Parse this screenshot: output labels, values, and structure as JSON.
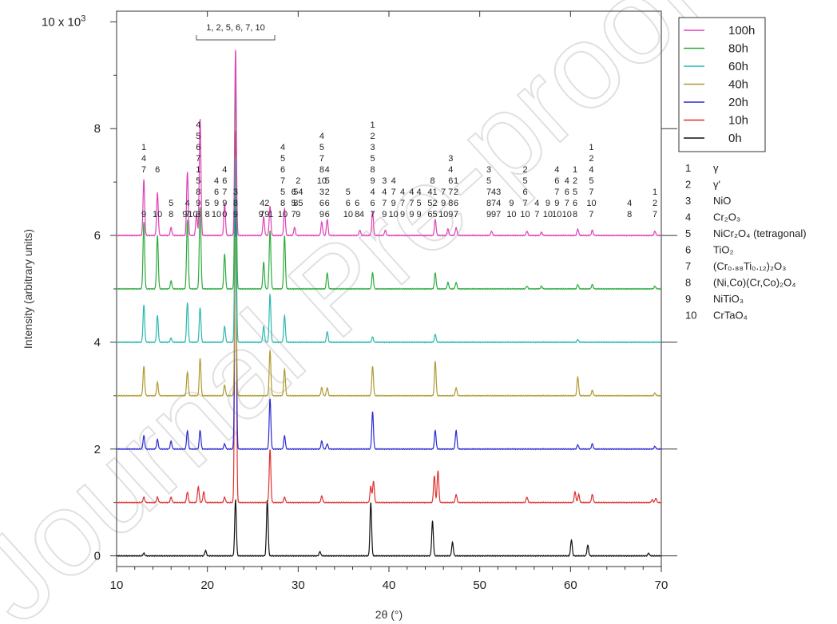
{
  "chart_data": {
    "type": "line",
    "xlabel": "2θ (°)",
    "ylabel": "Intensity (arbitrary units)",
    "xlim": [
      10,
      70
    ],
    "ylim": [
      -0.2,
      10.2
    ],
    "x_ticks": [
      "10",
      "20",
      "30",
      "40",
      "50",
      "60",
      "70"
    ],
    "y_ticks": [
      "0",
      "2",
      "4",
      "6",
      "8"
    ],
    "y_top_label": "10 x 10",
    "y_top_exponent": "3",
    "grid": false,
    "legend_position": "top-right",
    "series": [
      {
        "name": "100h",
        "color": "#e040b8",
        "offset": 6.0,
        "peaks": [
          [
            13.0,
            1.05
          ],
          [
            14.5,
            0.8
          ],
          [
            16.0,
            0.15
          ],
          [
            17.8,
            1.2
          ],
          [
            18.8,
            0.4
          ],
          [
            19.2,
            2.2
          ],
          [
            21.9,
            0.6
          ],
          [
            23.1,
            3.5
          ],
          [
            26.2,
            0.35
          ],
          [
            26.9,
            0.55
          ],
          [
            28.5,
            0.5
          ],
          [
            29.6,
            0.15
          ],
          [
            32.6,
            0.25
          ],
          [
            33.2,
            0.3
          ],
          [
            36.8,
            0.1
          ],
          [
            38.2,
            0.45
          ],
          [
            39.6,
            0.1
          ],
          [
            45.1,
            0.3
          ],
          [
            46.5,
            0.12
          ],
          [
            47.4,
            0.15
          ],
          [
            51.3,
            0.08
          ],
          [
            55.2,
            0.08
          ],
          [
            56.8,
            0.06
          ],
          [
            60.8,
            0.12
          ],
          [
            62.4,
            0.1
          ],
          [
            69.3,
            0.08
          ]
        ]
      },
      {
        "name": "80h",
        "color": "#2eaa3e",
        "offset": 5.0,
        "peaks": [
          [
            13.0,
            1.25
          ],
          [
            14.5,
            1.0
          ],
          [
            16.0,
            0.15
          ],
          [
            17.8,
            1.3
          ],
          [
            19.2,
            1.55
          ],
          [
            21.9,
            0.65
          ],
          [
            23.1,
            4.0
          ],
          [
            26.2,
            0.5
          ],
          [
            26.9,
            1.1
          ],
          [
            28.5,
            1.0
          ],
          [
            33.2,
            0.3
          ],
          [
            38.2,
            0.3
          ],
          [
            45.1,
            0.3
          ],
          [
            46.5,
            0.12
          ],
          [
            47.4,
            0.12
          ],
          [
            55.2,
            0.05
          ],
          [
            56.8,
            0.05
          ],
          [
            60.8,
            0.08
          ],
          [
            62.4,
            0.08
          ],
          [
            69.3,
            0.05
          ]
        ]
      },
      {
        "name": "60h",
        "color": "#2ab8b0",
        "offset": 4.0,
        "peaks": [
          [
            13.0,
            0.7
          ],
          [
            14.5,
            0.5
          ],
          [
            16.0,
            0.08
          ],
          [
            17.8,
            0.75
          ],
          [
            19.2,
            0.65
          ],
          [
            21.9,
            0.3
          ],
          [
            23.1,
            3.5
          ],
          [
            26.2,
            0.3
          ],
          [
            26.9,
            0.9
          ],
          [
            28.5,
            0.5
          ],
          [
            33.2,
            0.2
          ],
          [
            38.2,
            0.1
          ],
          [
            45.1,
            0.15
          ],
          [
            60.8,
            0.05
          ]
        ]
      },
      {
        "name": "40h",
        "color": "#b09a30",
        "offset": 3.0,
        "peaks": [
          [
            13.0,
            0.55
          ],
          [
            14.5,
            0.25
          ],
          [
            17.8,
            0.45
          ],
          [
            19.2,
            0.7
          ],
          [
            21.9,
            0.2
          ],
          [
            23.1,
            3.0
          ],
          [
            26.9,
            0.85
          ],
          [
            28.5,
            0.5
          ],
          [
            32.6,
            0.15
          ],
          [
            33.2,
            0.15
          ],
          [
            38.2,
            0.55
          ],
          [
            45.1,
            0.65
          ],
          [
            47.4,
            0.15
          ],
          [
            60.8,
            0.35
          ],
          [
            62.4,
            0.1
          ],
          [
            69.3,
            0.05
          ]
        ]
      },
      {
        "name": "20h",
        "color": "#2a2ad0",
        "offset": 2.0,
        "peaks": [
          [
            13.0,
            0.25
          ],
          [
            14.5,
            0.18
          ],
          [
            16.0,
            0.15
          ],
          [
            17.8,
            0.35
          ],
          [
            19.2,
            0.35
          ],
          [
            21.9,
            0.1
          ],
          [
            23.1,
            5.0
          ],
          [
            26.9,
            0.95
          ],
          [
            28.5,
            0.25
          ],
          [
            32.6,
            0.15
          ],
          [
            33.2,
            0.1
          ],
          [
            38.2,
            0.7
          ],
          [
            45.1,
            0.35
          ],
          [
            47.4,
            0.35
          ],
          [
            60.8,
            0.08
          ],
          [
            62.4,
            0.1
          ],
          [
            69.3,
            0.05
          ]
        ]
      },
      {
        "name": "10h",
        "color": "#e03030",
        "offset": 1.0,
        "peaks": [
          [
            13.0,
            0.1
          ],
          [
            14.5,
            0.1
          ],
          [
            16.0,
            0.1
          ],
          [
            17.8,
            0.2
          ],
          [
            19.0,
            0.3
          ],
          [
            19.6,
            0.2
          ],
          [
            21.9,
            0.1
          ],
          [
            23.1,
            7.0
          ],
          [
            26.9,
            1.0
          ],
          [
            28.5,
            0.1
          ],
          [
            32.6,
            0.12
          ],
          [
            38.0,
            0.3
          ],
          [
            38.3,
            0.4
          ],
          [
            45.0,
            0.5
          ],
          [
            45.4,
            0.6
          ],
          [
            47.4,
            0.15
          ],
          [
            55.2,
            0.1
          ],
          [
            60.5,
            0.2
          ],
          [
            60.9,
            0.15
          ],
          [
            62.4,
            0.15
          ],
          [
            69.0,
            0.05
          ],
          [
            69.4,
            0.08
          ]
        ]
      },
      {
        "name": "0h",
        "color": "#111111",
        "offset": 0.0,
        "peaks": [
          [
            13.0,
            0.05
          ],
          [
            19.8,
            0.1
          ],
          [
            23.1,
            1.05
          ],
          [
            26.6,
            1.05
          ],
          [
            32.4,
            0.08
          ],
          [
            38.0,
            1.0
          ],
          [
            44.8,
            0.65
          ],
          [
            47.0,
            0.25
          ],
          [
            60.1,
            0.3
          ],
          [
            61.9,
            0.2
          ],
          [
            68.6,
            0.05
          ]
        ]
      }
    ],
    "phase_legend": [
      {
        "num": "1",
        "label": "γ"
      },
      {
        "num": "2",
        "label": "γ'"
      },
      {
        "num": "3",
        "label": "NiO"
      },
      {
        "num": "4",
        "label": "Cr₂O₃"
      },
      {
        "num": "5",
        "label": "NiCr₂O₄ (tetragonal)"
      },
      {
        "num": "6",
        "label": "TiO₂"
      },
      {
        "num": "7",
        "label": "(Cr₀.₈₈Ti₀.₁₂)₂O₃"
      },
      {
        "num": "8",
        "label": "(Ni,Co)(Cr,Co)₂O₄"
      },
      {
        "num": "9",
        "label": "NiTiO₃"
      },
      {
        "num": "10",
        "label": "CrTaO₄"
      }
    ],
    "bracket_annotation": "1, 2, 5, 6, 7, 10",
    "peak_labels": [
      {
        "x": 13.0,
        "lines": [
          "1",
          "4",
          "7",
          "",
          "",
          "",
          "9"
        ]
      },
      {
        "x": 14.5,
        "lines": [
          "6",
          "",
          "",
          "",
          "10"
        ]
      },
      {
        "x": 16.0,
        "lines": [
          "5",
          "8"
        ]
      },
      {
        "x": 17.5,
        "lines": [
          "9"
        ]
      },
      {
        "x": 17.8,
        "lines": [
          "4",
          "7"
        ]
      },
      {
        "x": 18.4,
        "lines": [
          "10"
        ]
      },
      {
        "x": 19.0,
        "lines": [
          "4",
          "5",
          "6",
          "7",
          "1",
          "5",
          "8",
          "9",
          "3"
        ]
      },
      {
        "x": 20.0,
        "lines": [
          "5",
          "8"
        ]
      },
      {
        "x": 21.0,
        "lines": [
          "4",
          "6",
          "9",
          "10"
        ]
      },
      {
        "x": 21.9,
        "lines": [
          "4",
          "6",
          "7",
          "9",
          "0"
        ]
      },
      {
        "x": 23.1,
        "lines": [
          "3",
          "8",
          "9"
        ]
      },
      {
        "x": 26.3,
        "lines": [
          "42",
          "79"
        ]
      },
      {
        "x": 25.9,
        "lines": [
          "9"
        ]
      },
      {
        "x": 27.0,
        "lines": [
          "1"
        ]
      },
      {
        "x": 28.3,
        "lines": [
          "4",
          "5",
          "6",
          "7",
          "5",
          "8",
          "10"
        ]
      },
      {
        "x": 29.5,
        "lines": [
          "6",
          "5",
          "7"
        ]
      },
      {
        "x": 30.0,
        "lines": [
          "2",
          "54",
          "85",
          "9"
        ]
      },
      {
        "x": 32.6,
        "lines": [
          "4",
          "5",
          "7",
          "8",
          "10",
          "3",
          "6",
          "9"
        ]
      },
      {
        "x": 33.2,
        "lines": [
          "4",
          "5",
          "2",
          "6",
          "6"
        ]
      },
      {
        "x": 35.5,
        "lines": [
          "5",
          "6",
          "10"
        ]
      },
      {
        "x": 36.5,
        "lines": [
          "6",
          "8"
        ]
      },
      {
        "x": 37.0,
        "lines": [
          "4"
        ]
      },
      {
        "x": 38.2,
        "lines": [
          "1",
          "2",
          "3",
          "5",
          "8",
          "9",
          "4",
          "6",
          "7"
        ]
      },
      {
        "x": 39.5,
        "lines": [
          "3",
          "4",
          "7",
          "9"
        ]
      },
      {
        "x": 40.5,
        "lines": [
          "4",
          "7",
          "9",
          "10"
        ]
      },
      {
        "x": 41.5,
        "lines": [
          "4",
          "7",
          "9"
        ]
      },
      {
        "x": 42.5,
        "lines": [
          "4",
          "7",
          "9"
        ]
      },
      {
        "x": 43.3,
        "lines": [
          "4",
          "5",
          "9"
        ]
      },
      {
        "x": 44.8,
        "lines": [
          "8",
          "41",
          "52",
          "65"
        ]
      },
      {
        "x": 46.0,
        "lines": [
          "7",
          "9",
          "10"
        ]
      },
      {
        "x": 46.8,
        "lines": [
          "3",
          "4",
          "6",
          "7",
          "8",
          "9"
        ]
      },
      {
        "x": 47.4,
        "lines": [
          "1",
          "2",
          "6",
          "7"
        ]
      },
      {
        "x": 51.0,
        "lines": [
          "3",
          "5",
          "7",
          "8",
          "9"
        ]
      },
      {
        "x": 51.8,
        "lines": [
          "43",
          "74",
          "97"
        ]
      },
      {
        "x": 53.5,
        "lines": [
          "9",
          "10"
        ]
      },
      {
        "x": 55.0,
        "lines": [
          "2",
          "5",
          "6",
          "7",
          "10"
        ]
      },
      {
        "x": 56.3,
        "lines": [
          "4",
          "7"
        ]
      },
      {
        "x": 57.5,
        "lines": [
          "9",
          "10"
        ]
      },
      {
        "x": 58.5,
        "lines": [
          "4",
          "6",
          "7",
          "9",
          "10"
        ]
      },
      {
        "x": 59.6,
        "lines": [
          "4",
          "6",
          "7",
          "10"
        ]
      },
      {
        "x": 60.5,
        "lines": [
          "1",
          "2",
          "5",
          "6",
          "8"
        ]
      },
      {
        "x": 62.3,
        "lines": [
          "1",
          "2",
          "4",
          "5",
          "7",
          "10",
          "7"
        ]
      },
      {
        "x": 66.5,
        "lines": [
          "4",
          "8"
        ]
      },
      {
        "x": 69.3,
        "lines": [
          "1",
          "2",
          "7"
        ]
      }
    ]
  },
  "watermark_text": "Journal Pre-proof"
}
